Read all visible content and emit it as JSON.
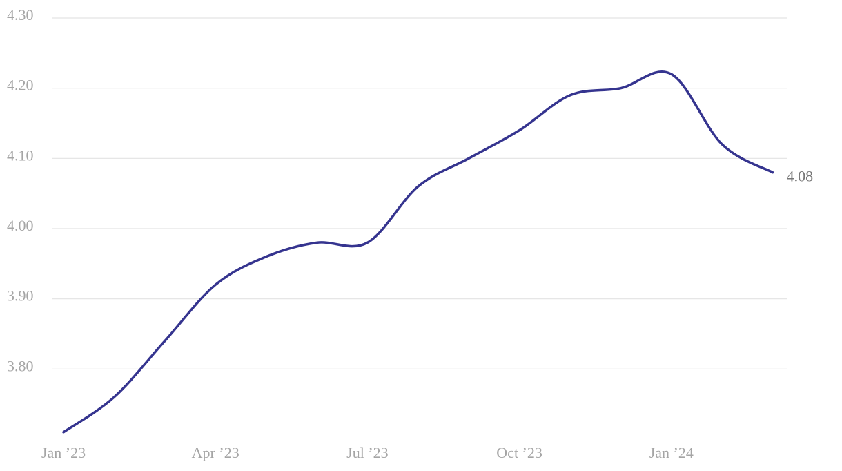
{
  "chart_data": {
    "type": "line",
    "categories": [
      "Jan ’23",
      null,
      null,
      "Apr ’23",
      null,
      null,
      "Jul ’23",
      null,
      null,
      "Oct ’23",
      null,
      null,
      "Jan ’24",
      null,
      null
    ],
    "values": [
      3.71,
      3.76,
      3.84,
      3.92,
      3.96,
      3.98,
      3.98,
      4.06,
      4.1,
      4.14,
      4.19,
      4.2,
      4.22,
      4.12,
      4.08
    ],
    "color": "#35348f",
    "ylim": [
      3.7,
      4.3
    ],
    "yticks": [
      {
        "value": 3.8,
        "label": "3.80"
      },
      {
        "value": 3.9,
        "label": "3.90"
      },
      {
        "value": 4.0,
        "label": "4.00"
      },
      {
        "value": 4.1,
        "label": "4.10"
      },
      {
        "value": 4.2,
        "label": "4.20"
      },
      {
        "value": 4.3,
        "label": "4.30"
      }
    ],
    "grid": true
  }
}
